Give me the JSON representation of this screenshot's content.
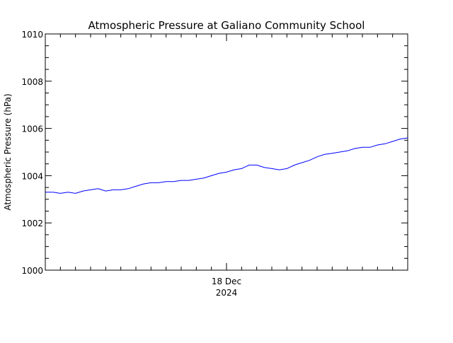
{
  "chart_data": {
    "type": "line",
    "title": "Atmospheric Pressure at Galiano Community School",
    "ylabel": "Atmospheric Pressure (hPa)",
    "xlabel": "",
    "x_tick_labels": [
      {
        "line1": "18 Dec",
        "line2": "2024"
      }
    ],
    "y_ticks": [
      "1000",
      "1002",
      "1004",
      "1006",
      "1008",
      "1010"
    ],
    "ylim": [
      1000,
      1010
    ],
    "grid": false,
    "legend": "none",
    "series": [
      {
        "color": "#0000ff",
        "x_hours": [
          0,
          1,
          2,
          3,
          4,
          5,
          6,
          7,
          8,
          9,
          10,
          11,
          12,
          13,
          14,
          15,
          16,
          17,
          18,
          19,
          20,
          21,
          22,
          23,
          24,
          25,
          26,
          27,
          28,
          29,
          30,
          31,
          32,
          33,
          34,
          35,
          36,
          37,
          38,
          39,
          40,
          41,
          42,
          43,
          44,
          45,
          46,
          47,
          48
        ],
        "values": [
          1003.3,
          1003.3,
          1003.25,
          1003.3,
          1003.25,
          1003.35,
          1003.4,
          1003.45,
          1003.35,
          1003.4,
          1003.4,
          1003.45,
          1003.55,
          1003.65,
          1003.7,
          1003.7,
          1003.75,
          1003.75,
          1003.8,
          1003.8,
          1003.85,
          1003.9,
          1004.0,
          1004.1,
          1004.15,
          1004.25,
          1004.3,
          1004.45,
          1004.45,
          1004.35,
          1004.3,
          1004.25,
          1004.3,
          1004.45,
          1004.55,
          1004.65,
          1004.8,
          1004.9,
          1004.95,
          1005.0,
          1005.05,
          1005.15,
          1005.2,
          1005.2,
          1005.3,
          1005.35,
          1005.45,
          1005.55,
          1005.6
        ]
      }
    ]
  }
}
